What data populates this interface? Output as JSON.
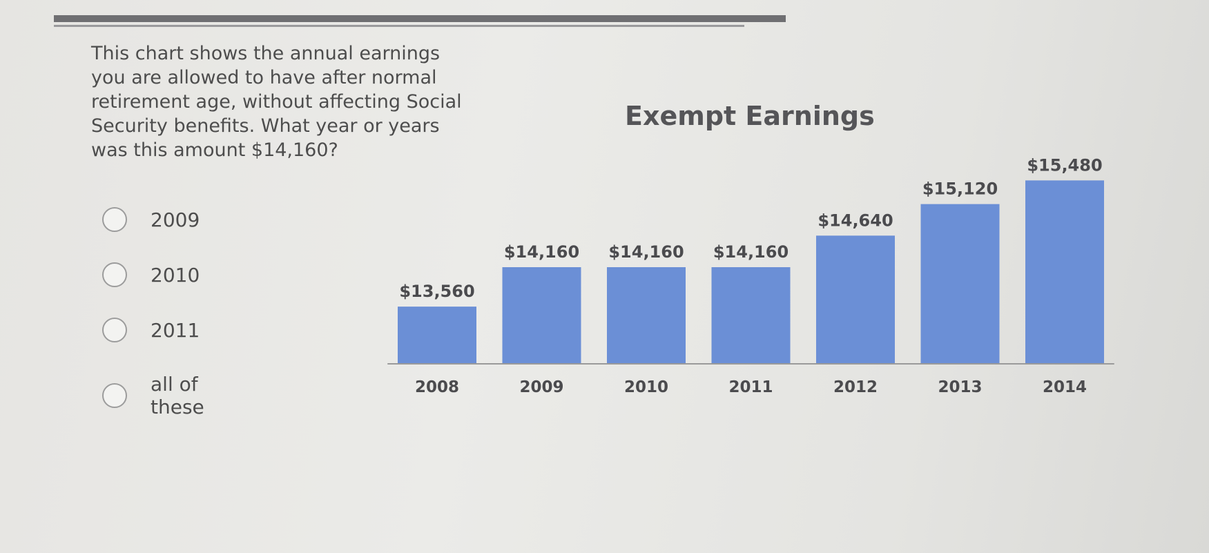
{
  "question": {
    "text": "This chart shows the annual earnings\nyou are allowed to have after normal\nretirement age, without affecting Social\nSecurity benefits. What year or years\nwas this amount $14,160?"
  },
  "options": [
    {
      "label": "2009"
    },
    {
      "label": "2010"
    },
    {
      "label": "2011"
    },
    {
      "label": "all of these"
    }
  ],
  "chart_data": {
    "type": "bar",
    "title": "Exempt Earnings",
    "categories": [
      "2008",
      "2009",
      "2010",
      "2011",
      "2012",
      "2013",
      "2014"
    ],
    "values": [
      13560,
      14160,
      14160,
      14160,
      14640,
      15120,
      15480
    ],
    "data_labels": [
      "$13,560",
      "$14,160",
      "$14,160",
      "$14,160",
      "$14,640",
      "$15,120",
      "$15,480"
    ],
    "bar_color": "#6b8fd6",
    "grid": false,
    "legend": "none"
  }
}
